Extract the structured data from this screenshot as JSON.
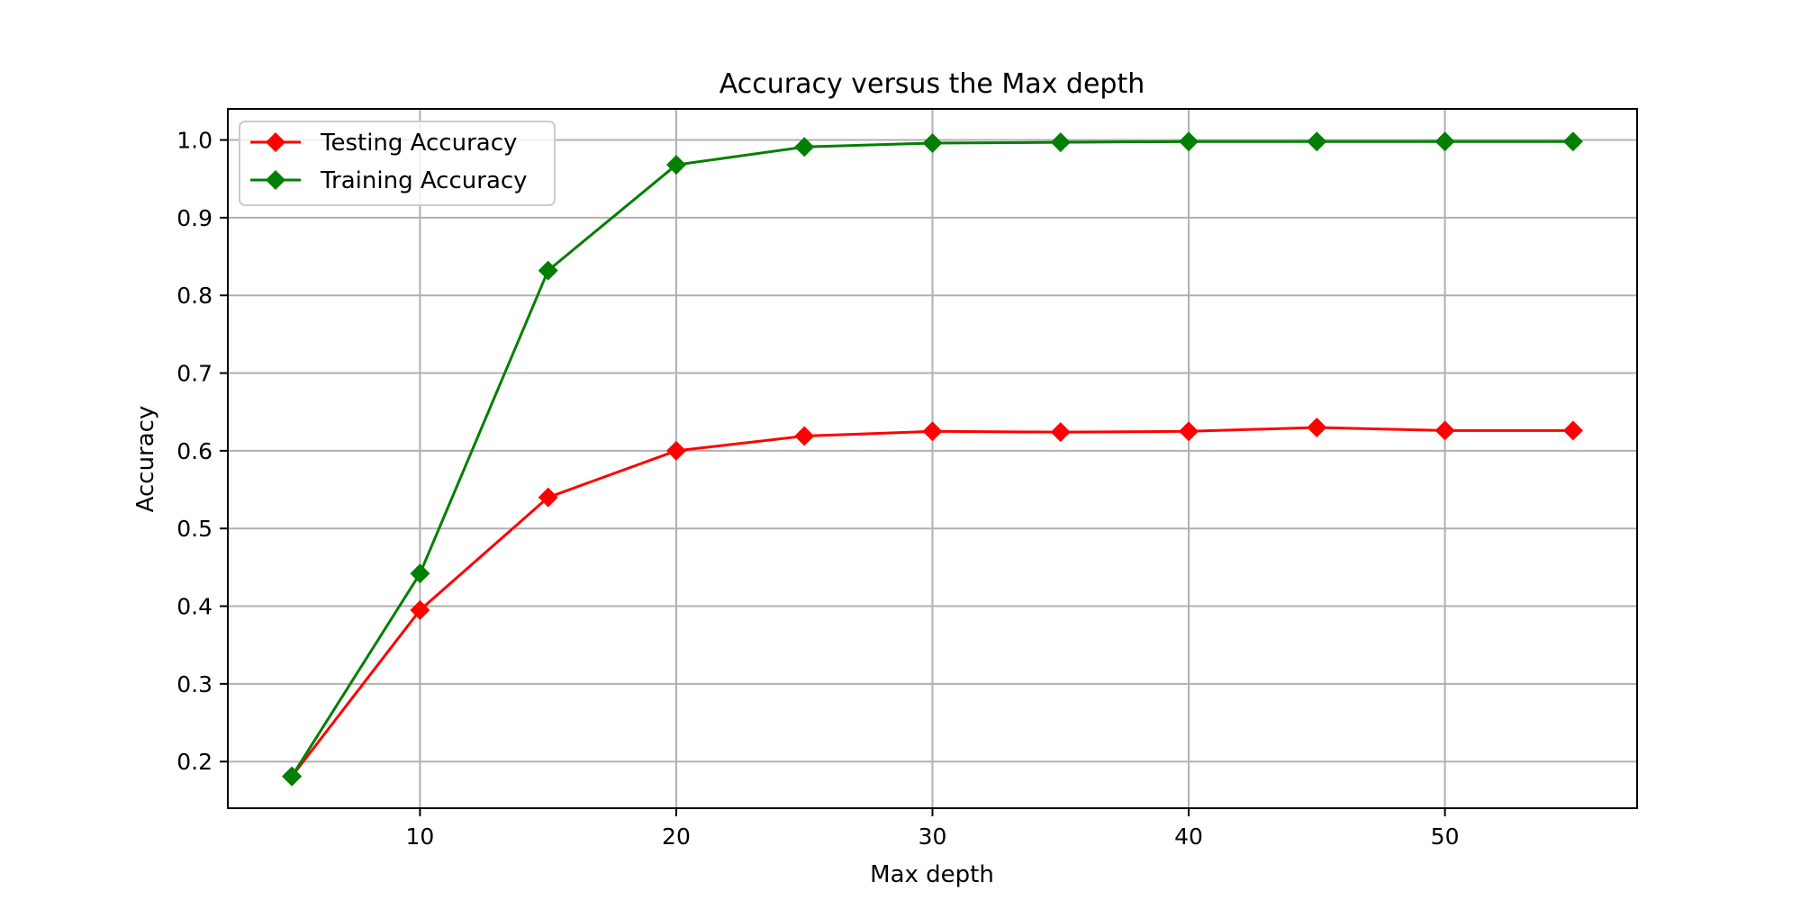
{
  "chart_data": {
    "type": "line",
    "title": "Accuracy versus the Max depth",
    "xlabel": "Max depth",
    "ylabel": "Accuracy",
    "x": [
      5,
      10,
      15,
      20,
      25,
      30,
      35,
      40,
      45,
      50,
      55
    ],
    "xlim": [
      2.5,
      57.5
    ],
    "ylim": [
      0.14,
      1.04
    ],
    "xticks": [
      10,
      20,
      30,
      40,
      50
    ],
    "xtick_labels": [
      "10",
      "20",
      "30",
      "40",
      "50"
    ],
    "yticks": [
      0.2,
      0.3,
      0.4,
      0.5,
      0.6,
      0.7,
      0.8,
      0.9,
      1.0
    ],
    "ytick_labels": [
      "0.2",
      "0.3",
      "0.4",
      "0.5",
      "0.6",
      "0.7",
      "0.8",
      "0.9",
      "1.0"
    ],
    "grid": true,
    "legend_position": "top-left",
    "series": [
      {
        "name": "Testing Accuracy",
        "color": "#ff0000",
        "marker": "diamond",
        "values": [
          0.181,
          0.395,
          0.54,
          0.6,
          0.619,
          0.625,
          0.624,
          0.625,
          0.63,
          0.626,
          0.626
        ]
      },
      {
        "name": "Training Accuracy",
        "color": "#008000",
        "marker": "diamond",
        "values": [
          0.181,
          0.442,
          0.832,
          0.968,
          0.991,
          0.996,
          0.997,
          0.998,
          0.998,
          0.998,
          0.998
        ]
      }
    ]
  }
}
